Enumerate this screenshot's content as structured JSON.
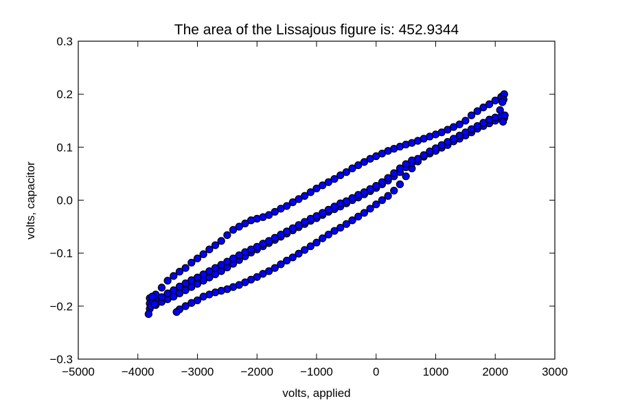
{
  "chart_data": {
    "type": "scatter",
    "title": "The area of the Lissajous figure is: 452.9344",
    "xlabel": "volts, applied",
    "ylabel": "volts, capacitor",
    "xlim": [
      -5000,
      3000
    ],
    "ylim": [
      -0.3,
      0.3
    ],
    "xticks": [
      -5000,
      -4000,
      -3000,
      -2000,
      -1000,
      0,
      1000,
      2000,
      3000
    ],
    "xtick_labels": [
      "−5000",
      "−4000",
      "−3000",
      "−2000",
      "−1000",
      "0",
      "1000",
      "2000",
      "3000"
    ],
    "yticks": [
      -0.3,
      -0.2,
      -0.1,
      0.0,
      0.1,
      0.2,
      0.3
    ],
    "ytick_labels": [
      "−0.3",
      "−0.2",
      "−0.1",
      "0.0",
      "0.1",
      "0.2",
      "0.3"
    ],
    "grid": false,
    "marker_color": "#0000ff",
    "marker_edge_color": "#000000",
    "series": [
      {
        "points": [
          [
            -3800,
            -0.185
          ],
          [
            -3700,
            -0.178
          ],
          [
            -3600,
            -0.165
          ],
          [
            -3500,
            -0.152
          ],
          [
            -3400,
            -0.143
          ],
          [
            -3300,
            -0.135
          ],
          [
            -3200,
            -0.128
          ],
          [
            -3100,
            -0.118
          ],
          [
            -3000,
            -0.11
          ],
          [
            -2900,
            -0.102
          ],
          [
            -2800,
            -0.093
          ],
          [
            -2700,
            -0.085
          ],
          [
            -2600,
            -0.077
          ],
          [
            -2500,
            -0.066
          ],
          [
            -2400,
            -0.056
          ],
          [
            -2300,
            -0.05
          ],
          [
            -2200,
            -0.044
          ],
          [
            -2100,
            -0.038
          ],
          [
            -2000,
            -0.035
          ],
          [
            -1900,
            -0.032
          ],
          [
            -1800,
            -0.028
          ],
          [
            -1700,
            -0.022
          ],
          [
            -1600,
            -0.016
          ],
          [
            -1500,
            -0.011
          ],
          [
            -1400,
            -0.004
          ],
          [
            -1300,
            0.002
          ],
          [
            -1200,
            0.008
          ],
          [
            -1100,
            0.015
          ],
          [
            -1000,
            0.022
          ],
          [
            -900,
            0.028
          ],
          [
            -800,
            0.034
          ],
          [
            -700,
            0.04
          ],
          [
            -600,
            0.047
          ],
          [
            -500,
            0.053
          ],
          [
            -400,
            0.06
          ],
          [
            -300,
            0.066
          ],
          [
            -200,
            0.072
          ],
          [
            -100,
            0.078
          ],
          [
            0,
            0.083
          ],
          [
            100,
            0.088
          ],
          [
            200,
            0.093
          ],
          [
            300,
            0.097
          ],
          [
            400,
            0.101
          ],
          [
            500,
            0.105
          ],
          [
            600,
            0.108
          ],
          [
            700,
            0.112
          ],
          [
            800,
            0.116
          ],
          [
            900,
            0.12
          ],
          [
            1000,
            0.124
          ],
          [
            1100,
            0.128
          ],
          [
            1200,
            0.133
          ],
          [
            1300,
            0.138
          ],
          [
            1400,
            0.143
          ],
          [
            1500,
            0.15
          ],
          [
            1600,
            0.16
          ],
          [
            1700,
            0.168
          ],
          [
            1800,
            0.175
          ],
          [
            1900,
            0.181
          ],
          [
            2000,
            0.188
          ],
          [
            2100,
            0.195
          ],
          [
            2150,
            0.2
          ],
          [
            2150,
            0.155
          ],
          [
            2100,
            0.153
          ],
          [
            2000,
            0.15
          ],
          [
            1900,
            0.145
          ],
          [
            1800,
            0.14
          ],
          [
            1700,
            0.135
          ],
          [
            1600,
            0.128
          ],
          [
            1500,
            0.122
          ],
          [
            1400,
            0.116
          ],
          [
            1300,
            0.111
          ],
          [
            1200,
            0.104
          ],
          [
            1100,
            0.099
          ],
          [
            1000,
            0.093
          ],
          [
            900,
            0.088
          ],
          [
            800,
            0.082
          ],
          [
            700,
            0.073
          ],
          [
            600,
            0.06
          ],
          [
            500,
            0.045
          ],
          [
            400,
            0.03
          ],
          [
            300,
            0.018
          ],
          [
            200,
            0.008
          ],
          [
            100,
            0.0
          ],
          [
            0,
            -0.008
          ],
          [
            -100,
            -0.016
          ],
          [
            -200,
            -0.024
          ],
          [
            -300,
            -0.031
          ],
          [
            -400,
            -0.038
          ],
          [
            -500,
            -0.045
          ],
          [
            -600,
            -0.052
          ],
          [
            -700,
            -0.058
          ],
          [
            -800,
            -0.065
          ],
          [
            -900,
            -0.072
          ],
          [
            -1000,
            -0.08
          ],
          [
            -1100,
            -0.087
          ],
          [
            -1200,
            -0.094
          ],
          [
            -1300,
            -0.101
          ],
          [
            -1400,
            -0.108
          ],
          [
            -1500,
            -0.114
          ],
          [
            -1600,
            -0.121
          ],
          [
            -1700,
            -0.128
          ],
          [
            -1800,
            -0.134
          ],
          [
            -1900,
            -0.139
          ],
          [
            -2000,
            -0.145
          ],
          [
            -2100,
            -0.15
          ],
          [
            -2200,
            -0.155
          ],
          [
            -2300,
            -0.16
          ],
          [
            -2400,
            -0.164
          ],
          [
            -2500,
            -0.168
          ],
          [
            -2600,
            -0.171
          ],
          [
            -2700,
            -0.174
          ],
          [
            -2800,
            -0.178
          ],
          [
            -2900,
            -0.182
          ],
          [
            -3000,
            -0.189
          ],
          [
            -3100,
            -0.194
          ],
          [
            -3200,
            -0.2
          ],
          [
            -3300,
            -0.206
          ],
          [
            -3350,
            -0.211
          ],
          [
            -3800,
            -0.205
          ],
          [
            -3700,
            -0.198
          ],
          [
            -3600,
            -0.192
          ],
          [
            -3500,
            -0.187
          ],
          [
            -3400,
            -0.182
          ],
          [
            -3300,
            -0.176
          ],
          [
            -3200,
            -0.17
          ],
          [
            -3100,
            -0.164
          ],
          [
            -3000,
            -0.158
          ],
          [
            -2900,
            -0.152
          ],
          [
            -2800,
            -0.146
          ],
          [
            -2700,
            -0.14
          ],
          [
            -2600,
            -0.134
          ],
          [
            -2500,
            -0.127
          ],
          [
            -2400,
            -0.12
          ],
          [
            -2300,
            -0.113
          ],
          [
            -2200,
            -0.106
          ],
          [
            -2100,
            -0.099
          ],
          [
            -2000,
            -0.093
          ],
          [
            -1900,
            -0.087
          ],
          [
            -1800,
            -0.081
          ],
          [
            -1700,
            -0.075
          ],
          [
            -1600,
            -0.069
          ],
          [
            -1500,
            -0.063
          ],
          [
            -1400,
            -0.057
          ],
          [
            -1300,
            -0.051
          ],
          [
            -1200,
            -0.045
          ],
          [
            -1100,
            -0.039
          ],
          [
            -1000,
            -0.034
          ],
          [
            -900,
            -0.028
          ],
          [
            -800,
            -0.022
          ],
          [
            -700,
            -0.017
          ],
          [
            -600,
            -0.012
          ],
          [
            -500,
            -0.006
          ],
          [
            -400,
            0.0
          ],
          [
            -300,
            0.005
          ],
          [
            -200,
            0.011
          ],
          [
            -100,
            0.017
          ],
          [
            0,
            0.023
          ],
          [
            100,
            0.03
          ],
          [
            200,
            0.037
          ],
          [
            300,
            0.045
          ],
          [
            400,
            0.053
          ],
          [
            500,
            0.062
          ],
          [
            600,
            0.07
          ],
          [
            700,
            0.078
          ],
          [
            800,
            0.085
          ],
          [
            900,
            0.092
          ],
          [
            1000,
            0.098
          ],
          [
            1100,
            0.104
          ],
          [
            1200,
            0.11
          ],
          [
            1300,
            0.116
          ],
          [
            1400,
            0.122
          ],
          [
            1500,
            0.128
          ],
          [
            1600,
            0.134
          ],
          [
            1700,
            0.14
          ],
          [
            1800,
            0.146
          ],
          [
            1900,
            0.152
          ],
          [
            2000,
            0.156
          ],
          [
            2100,
            0.158
          ],
          [
            -3800,
            -0.195
          ],
          [
            -3700,
            -0.19
          ],
          [
            -3600,
            -0.183
          ],
          [
            -3500,
            -0.176
          ],
          [
            -3400,
            -0.17
          ],
          [
            -3300,
            -0.163
          ],
          [
            -3200,
            -0.157
          ],
          [
            -3100,
            -0.151
          ],
          [
            -3000,
            -0.146
          ],
          [
            -2900,
            -0.14
          ],
          [
            -2800,
            -0.134
          ],
          [
            -2700,
            -0.128
          ],
          [
            -2600,
            -0.122
          ],
          [
            -2500,
            -0.116
          ],
          [
            -2400,
            -0.11
          ],
          [
            -2300,
            -0.104
          ],
          [
            -2200,
            -0.098
          ],
          [
            -2100,
            -0.093
          ],
          [
            -2000,
            -0.088
          ],
          [
            -1900,
            -0.082
          ],
          [
            -1800,
            -0.077
          ],
          [
            -1700,
            -0.071
          ],
          [
            -1600,
            -0.065
          ],
          [
            -1500,
            -0.059
          ],
          [
            -1400,
            -0.053
          ],
          [
            -1300,
            -0.047
          ],
          [
            -1200,
            -0.041
          ],
          [
            -1100,
            -0.035
          ],
          [
            -1000,
            -0.03
          ],
          [
            -900,
            -0.024
          ],
          [
            -800,
            -0.018
          ],
          [
            -700,
            -0.012
          ],
          [
            -600,
            -0.006
          ],
          [
            -500,
            -0.002
          ],
          [
            -400,
            0.004
          ],
          [
            -300,
            0.01
          ],
          [
            -200,
            0.015
          ],
          [
            -100,
            0.021
          ],
          [
            0,
            0.027
          ],
          [
            100,
            0.034
          ],
          [
            200,
            0.042
          ],
          [
            300,
            0.051
          ],
          [
            400,
            0.06
          ],
          [
            500,
            0.068
          ],
          [
            600,
            0.075
          ],
          [
            -3820,
            -0.215
          ],
          [
            -3780,
            -0.2
          ],
          [
            -3750,
            -0.19
          ],
          [
            -3760,
            -0.182
          ],
          [
            -3720,
            -0.196
          ],
          [
            2140,
            0.19
          ],
          [
            2120,
            0.185
          ],
          [
            2160,
            0.16
          ],
          [
            2130,
            0.148
          ],
          [
            2080,
            0.17
          ]
        ]
      }
    ]
  }
}
